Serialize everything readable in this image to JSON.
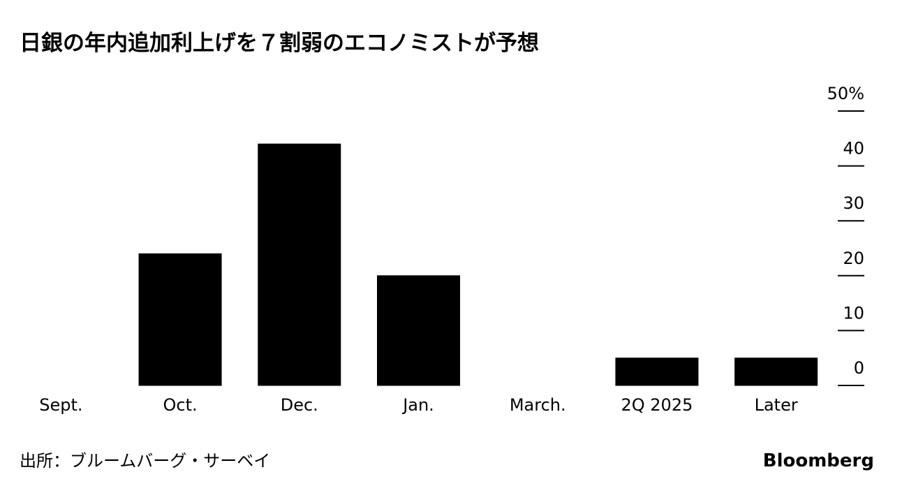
{
  "chart_data": {
    "type": "bar",
    "title": "日銀の年内追加利上げを７割弱のエコノミストが予想",
    "categories": [
      "Sept.",
      "Oct.",
      "Dec.",
      "Jan.",
      "March.",
      "2Q 2025",
      "Later"
    ],
    "values": [
      0,
      24,
      44,
      20,
      0,
      5,
      5
    ],
    "color": "#000000",
    "ylim": [
      0,
      50
    ],
    "yticks": [
      0,
      10,
      20,
      30,
      40,
      {
        "value": 50,
        "label": "50%"
      }
    ],
    "source": "出所：ブルームバーグ・サーベイ",
    "brand": "Bloomberg"
  }
}
